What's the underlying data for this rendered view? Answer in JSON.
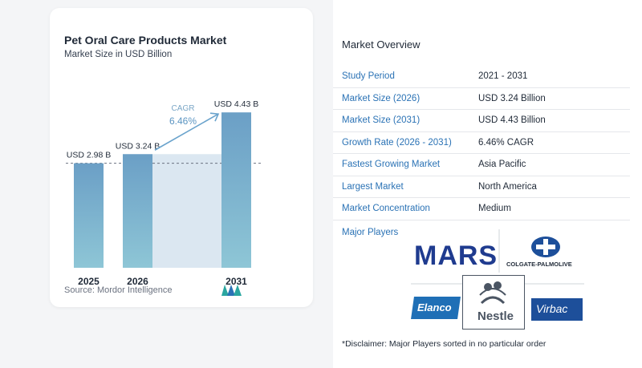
{
  "chart_data": {
    "type": "bar",
    "title": "Pet Oral Care Products Market",
    "subtitle": "Market Size in USD Billion",
    "categories": [
      "2025",
      "2026",
      "2031"
    ],
    "values": [
      2.98,
      3.24,
      4.43
    ],
    "value_labels": [
      "USD 2.98 B",
      "USD 3.24 B",
      "USD 4.43 B"
    ],
    "cagr_label": "CAGR",
    "cagr_value": "6.46%",
    "bar_color": "#6b9fc6",
    "bar_color_light": "#8ec6d6",
    "shade_color": "#dbe7f1",
    "ylim": [
      0,
      4.8
    ]
  },
  "source": "Source: Mordor Intelligence",
  "overview": {
    "title": "Market Overview",
    "rows": [
      {
        "label": "Study Period",
        "value": "2021 - 2031"
      },
      {
        "label": "Market Size (2026)",
        "value": "USD 3.24 Billion"
      },
      {
        "label": "Market Size (2031)",
        "value": "USD 4.43 Billion"
      },
      {
        "label": "Growth Rate (2026 - 2031)",
        "value": "6.46% CAGR"
      },
      {
        "label": "Fastest Growing Market",
        "value": "Asia Pacific"
      },
      {
        "label": "Largest Market",
        "value": "North America"
      },
      {
        "label": "Market Concentration",
        "value": "Medium"
      }
    ],
    "players_label": "Major Players",
    "players": {
      "mars": "MARS",
      "colgate": "COLGATE-PALMOLIVE",
      "elanco": "Elanco",
      "nestle": "Nestle",
      "virbac": "Virbac"
    },
    "disclaimer": "*Disclaimer: Major Players sorted in no particular order"
  },
  "colors": {
    "accent": "#2a72b5",
    "mars_blue": "#1f3b8f",
    "virbac_blue": "#1d4f9a"
  }
}
